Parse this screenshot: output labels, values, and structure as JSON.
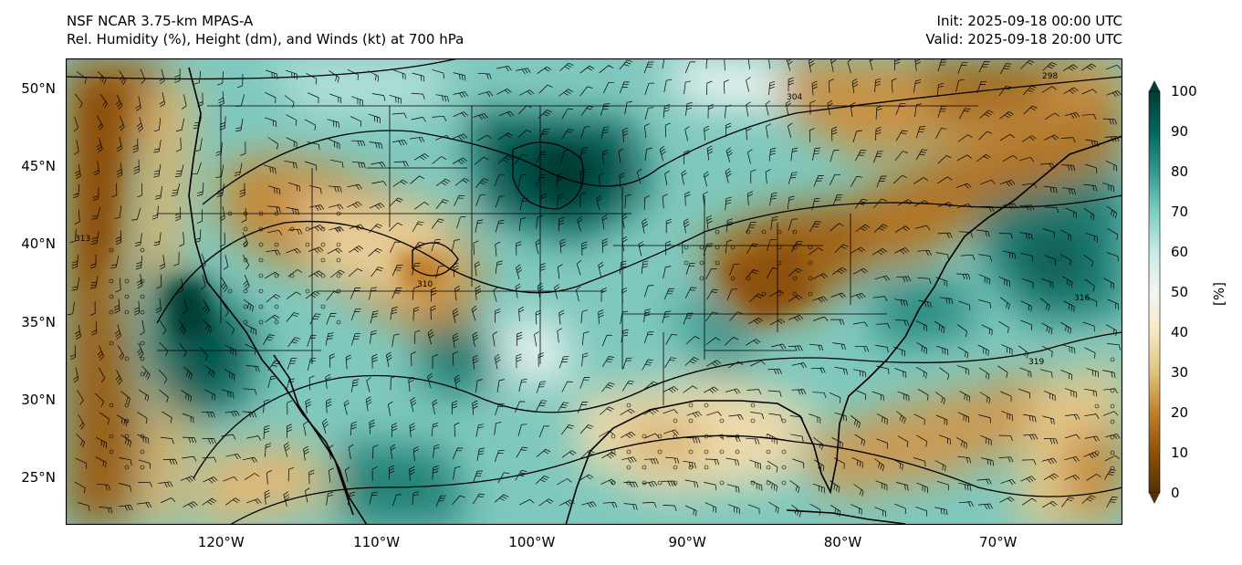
{
  "header": {
    "title_line1": "NSF NCAR 3.75-km MPAS-A",
    "title_line2": "Rel. Humidity (%), Height (dm), and Winds (kt) at 700 hPa",
    "init": "Init: 2025-09-18 00:00 UTC",
    "valid": "Valid: 2025-09-18 20:00 UTC"
  },
  "map": {
    "projection": "PlateCarree",
    "lon_range": [
      -130,
      -62
    ],
    "lat_range": [
      22,
      52
    ],
    "lat_ticks": [
      {
        "value": 50,
        "label": "50°N"
      },
      {
        "value": 45,
        "label": "45°N"
      },
      {
        "value": 40,
        "label": "40°N"
      },
      {
        "value": 35,
        "label": "35°N"
      },
      {
        "value": 30,
        "label": "30°N"
      },
      {
        "value": 25,
        "label": "25°N"
      }
    ],
    "lon_ticks": [
      {
        "value": -120,
        "label": "120°W"
      },
      {
        "value": -110,
        "label": "110°W"
      },
      {
        "value": -100,
        "label": "100°W"
      },
      {
        "value": -90,
        "label": "90°W"
      },
      {
        "value": -80,
        "label": "80°W"
      },
      {
        "value": -70,
        "label": "70°W"
      }
    ],
    "contour_labels": [
      "310",
      "313",
      "316",
      "319",
      "298",
      "304"
    ]
  },
  "colorbar": {
    "ticks": [
      "100",
      "90",
      "80",
      "70",
      "60",
      "50",
      "40",
      "30",
      "20",
      "10",
      "0"
    ],
    "unit_label": "[%]",
    "colors": [
      "#543005",
      "#8c510a",
      "#bf812d",
      "#dfc27d",
      "#f6e8c3",
      "#f5f5f5",
      "#c7eae5",
      "#80cdc1",
      "#35978f",
      "#01665e",
      "#003c30"
    ]
  }
}
